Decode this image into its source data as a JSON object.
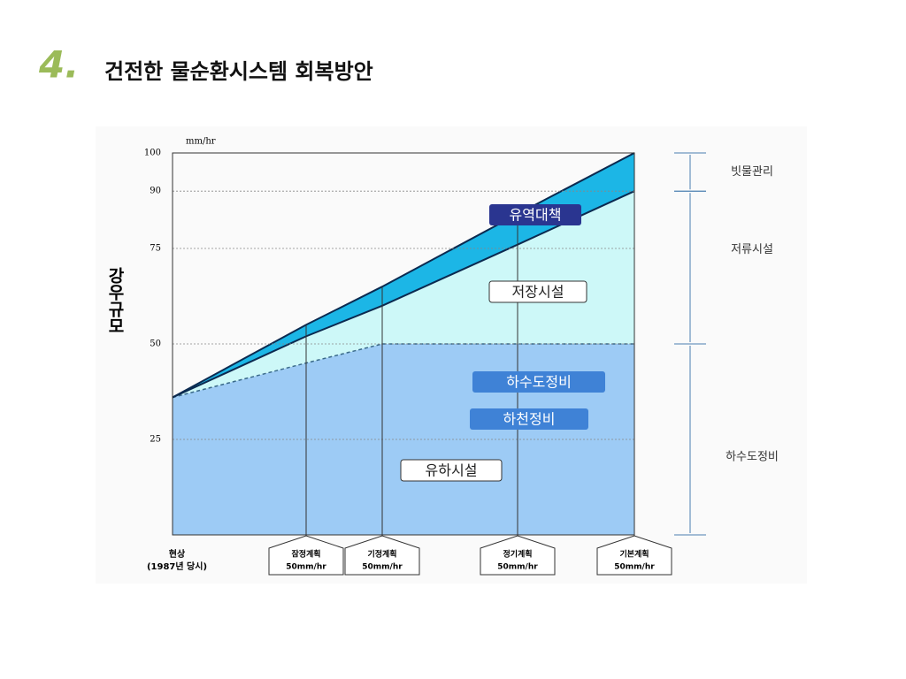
{
  "slide": {
    "number": "4.",
    "title": "건전한 물순환시스템 회복방안"
  },
  "chart_data": {
    "type": "area",
    "y_label": "강우규모",
    "y_unit": "mm/hr",
    "categories": [
      "현상",
      "잠정계획",
      "기정계획",
      "정기계획",
      "기본계획"
    ],
    "category_sublabels": [
      "(1987년 당시)",
      "50mm/hr",
      "50mm/hr",
      "50mm/hr",
      "50mm/hr"
    ],
    "series": [
      {
        "color": "#9dcbf5",
        "values": [
          36,
          45,
          50,
          50,
          50
        ]
      },
      {
        "color": "#cdf8f8",
        "values": [
          36,
          52,
          60,
          76,
          90
        ]
      },
      {
        "color": "#1cb6e6",
        "values": [
          36,
          55,
          65,
          84,
          100
        ]
      }
    ],
    "ylim": [
      0,
      100
    ],
    "yticks": [
      25,
      50,
      75,
      90,
      100
    ],
    "grid": true,
    "annotations": [
      {
        "text": "유역대책"
      },
      {
        "text": "저장시설"
      },
      {
        "text": "하수도정비"
      },
      {
        "text": "하천정비"
      },
      {
        "text": "유하시설"
      }
    ],
    "ranges": [
      {
        "label": "빗물관리",
        "from": 90,
        "to": 100
      },
      {
        "label": "저류시설",
        "from": 50,
        "to": 90
      },
      {
        "label": "하수도정비",
        "from": 0,
        "to": 50
      }
    ]
  }
}
